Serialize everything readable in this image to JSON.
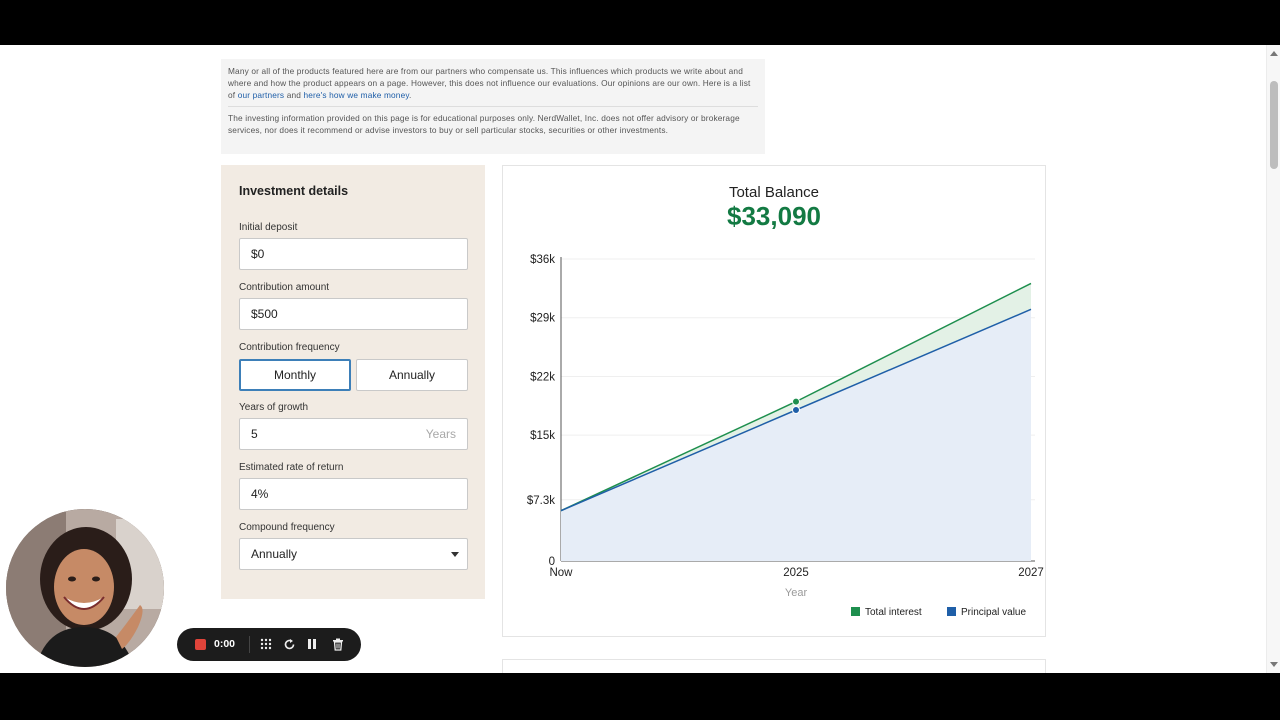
{
  "disclaimer": {
    "para1_text": "Many or all of the products featured here are from our partners who compensate us. This influences which products we write about and where and how the product appears on a page. However, this does not influence our evaluations. Our opinions are our own. Here is a list of ",
    "partners_link": "our partners",
    "and_text": " and ",
    "money_link": "here's how we make money",
    "para1_end": ".",
    "para2_text": "The investing information provided on this page is for educational purposes only. NerdWallet, Inc. does not offer advisory or brokerage services, nor does it recommend or advise investors to buy or sell particular stocks, securities or other investments."
  },
  "form": {
    "title": "Investment details",
    "initial_deposit_label": "Initial deposit",
    "initial_deposit_value": "$0",
    "contribution_amount_label": "Contribution amount",
    "contribution_amount_value": "$500",
    "contribution_frequency_label": "Contribution frequency",
    "frequency_monthly": "Monthly",
    "frequency_annually": "Annually",
    "frequency_selected": "Monthly",
    "years_label": "Years of growth",
    "years_value": "5",
    "years_suffix": "Years",
    "rate_label": "Estimated rate of return",
    "rate_value": "4%",
    "compound_label": "Compound frequency",
    "compound_value": "Annually"
  },
  "chart_header": {
    "title": "Total Balance",
    "value": "$33,090"
  },
  "chart_data": {
    "type": "area",
    "title": "Total Balance",
    "xlabel": "Year",
    "ylabel": "",
    "x": [
      "Now",
      "2025",
      "2027"
    ],
    "x_positions": [
      0,
      2.5,
      5
    ],
    "y_ticks": [
      "0",
      "$7.3k",
      "$15k",
      "$22k",
      "$29k",
      "$36k"
    ],
    "y_tick_values": [
      0,
      7300,
      15000,
      22000,
      29000,
      36000
    ],
    "ylim": [
      0,
      36000
    ],
    "series": [
      {
        "name": "Total interest",
        "color": "#1e8f4e",
        "values": [
          6000,
          19000,
          33090
        ]
      },
      {
        "name": "Principal value",
        "color": "#1f5fa8",
        "values": [
          6000,
          18000,
          30000
        ]
      }
    ],
    "markers_at_x": 2.5,
    "grid": true,
    "legend_position": "bottom-right"
  },
  "recorder": {
    "time": "0:00",
    "icons": [
      "record-icon",
      "grid-icon",
      "restart-icon",
      "pause-icon",
      "trash-icon"
    ]
  }
}
